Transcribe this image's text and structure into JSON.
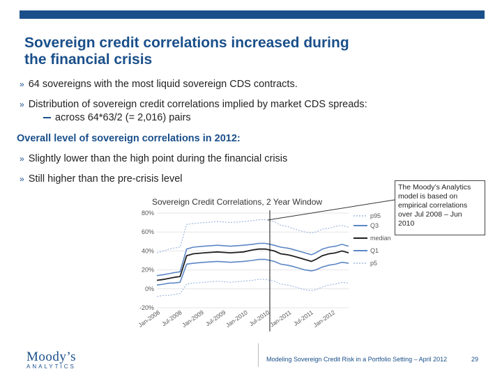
{
  "slide": {
    "title_line1": "Sovereign credit correlations increased during",
    "title_line2": "the financial crisis",
    "bullets": [
      "64 sovereigns with the most liquid sovereign CDS contracts.",
      "Distribution of sovereign credit correlations implied by market CDS spreads:"
    ],
    "sub_bullet": "across 64*63/2 (= 2,016) pairs",
    "heading": "Overall level of sovereign correlations in 2012:",
    "bullets2": [
      "Slightly lower than the high point during the financial crisis",
      "Still higher than the pre-crisis level"
    ],
    "bullet_mark": "»",
    "callout": [
      "The Moody’s Analytics",
      "model is based on",
      "empirical correlations",
      "over Jul 2008 – Jun",
      "2010"
    ],
    "logo_main": "Moody’s",
    "logo_sub": "ANALYTICS",
    "footer": "Modeling Sovereign Credit Risk in a Portfolio Setting – April 2012",
    "page_number": "29"
  },
  "colors": {
    "brand": "#1a4f8a",
    "p95": "#9bb8e0",
    "q3": "#5b86c4",
    "median": "#1f1f1f",
    "q1": "#5b86c4",
    "p5": "#9bb8e0"
  },
  "chart_data": {
    "type": "line",
    "title": "Sovereign Credit Correlations, 2 Year Window",
    "y_ticks": [
      "80%",
      "60%",
      "40%",
      "20%",
      "0%",
      "-20%"
    ],
    "ylim": [
      -0.2,
      0.8
    ],
    "x_ticks": [
      "Jan-2008",
      "Jul-2008",
      "Jan-2009",
      "Jul-2009",
      "Jan-2010",
      "Jul-2010",
      "Jan-2011",
      "Jul-2011",
      "Jan-2012"
    ],
    "x_range": [
      2007.92,
      2012.3
    ],
    "marker_x": 2010.5,
    "series": [
      {
        "name": "p95",
        "x": [
          2007.92,
          2008.08,
          2008.2,
          2008.3,
          2008.45,
          2008.6,
          2008.75,
          2009.0,
          2009.3,
          2009.6,
          2009.9,
          2010.1,
          2010.25,
          2010.4,
          2010.6,
          2010.75,
          2010.9,
          2011.0,
          2011.15,
          2011.3,
          2011.45,
          2011.55,
          2011.7,
          2011.85,
          2012.0,
          2012.15,
          2012.3
        ],
        "values": [
          0.38,
          0.4,
          0.42,
          0.43,
          0.44,
          0.68,
          0.69,
          0.7,
          0.71,
          0.7,
          0.71,
          0.72,
          0.73,
          0.73,
          0.71,
          0.67,
          0.66,
          0.64,
          0.62,
          0.6,
          0.59,
          0.6,
          0.63,
          0.64,
          0.66,
          0.67,
          0.65
        ]
      },
      {
        "name": "Q3",
        "x": [
          2007.92,
          2008.08,
          2008.2,
          2008.3,
          2008.45,
          2008.6,
          2008.75,
          2009.0,
          2009.3,
          2009.6,
          2009.9,
          2010.1,
          2010.25,
          2010.4,
          2010.6,
          2010.75,
          2010.9,
          2011.0,
          2011.15,
          2011.3,
          2011.45,
          2011.55,
          2011.7,
          2011.85,
          2012.0,
          2012.15,
          2012.3
        ],
        "values": [
          0.14,
          0.15,
          0.16,
          0.17,
          0.18,
          0.42,
          0.44,
          0.45,
          0.46,
          0.45,
          0.46,
          0.47,
          0.48,
          0.48,
          0.46,
          0.44,
          0.43,
          0.42,
          0.4,
          0.38,
          0.36,
          0.38,
          0.42,
          0.44,
          0.45,
          0.47,
          0.45
        ]
      },
      {
        "name": "median",
        "x": [
          2007.92,
          2008.08,
          2008.2,
          2008.3,
          2008.45,
          2008.6,
          2008.75,
          2009.0,
          2009.3,
          2009.6,
          2009.9,
          2010.1,
          2010.25,
          2010.4,
          2010.6,
          2010.75,
          2010.9,
          2011.0,
          2011.15,
          2011.3,
          2011.45,
          2011.55,
          2011.7,
          2011.85,
          2012.0,
          2012.15,
          2012.3
        ],
        "values": [
          0.09,
          0.1,
          0.11,
          0.12,
          0.13,
          0.35,
          0.37,
          0.38,
          0.39,
          0.38,
          0.39,
          0.41,
          0.42,
          0.42,
          0.4,
          0.37,
          0.36,
          0.35,
          0.33,
          0.31,
          0.29,
          0.31,
          0.35,
          0.37,
          0.38,
          0.4,
          0.38
        ]
      },
      {
        "name": "Q1",
        "x": [
          2007.92,
          2008.08,
          2008.2,
          2008.3,
          2008.45,
          2008.6,
          2008.75,
          2009.0,
          2009.3,
          2009.6,
          2009.9,
          2010.1,
          2010.25,
          2010.4,
          2010.6,
          2010.75,
          2010.9,
          2011.0,
          2011.15,
          2011.3,
          2011.45,
          2011.55,
          2011.7,
          2011.85,
          2012.0,
          2012.15,
          2012.3
        ],
        "values": [
          0.04,
          0.05,
          0.06,
          0.06,
          0.07,
          0.26,
          0.27,
          0.28,
          0.29,
          0.28,
          0.29,
          0.3,
          0.31,
          0.31,
          0.29,
          0.26,
          0.25,
          0.24,
          0.22,
          0.2,
          0.19,
          0.2,
          0.23,
          0.25,
          0.26,
          0.28,
          0.27
        ]
      },
      {
        "name": "p5",
        "x": [
          2007.92,
          2008.08,
          2008.2,
          2008.3,
          2008.45,
          2008.6,
          2008.75,
          2009.0,
          2009.3,
          2009.6,
          2009.9,
          2010.1,
          2010.25,
          2010.4,
          2010.6,
          2010.75,
          2010.9,
          2011.0,
          2011.15,
          2011.3,
          2011.45,
          2011.55,
          2011.7,
          2011.85,
          2012.0,
          2012.15,
          2012.3
        ],
        "values": [
          -0.08,
          -0.07,
          -0.07,
          -0.06,
          -0.05,
          0.05,
          0.06,
          0.07,
          0.08,
          0.07,
          0.08,
          0.09,
          0.1,
          0.1,
          0.08,
          0.05,
          0.04,
          0.03,
          0.01,
          -0.01,
          -0.02,
          -0.01,
          0.02,
          0.04,
          0.05,
          0.07,
          0.06
        ]
      }
    ]
  }
}
